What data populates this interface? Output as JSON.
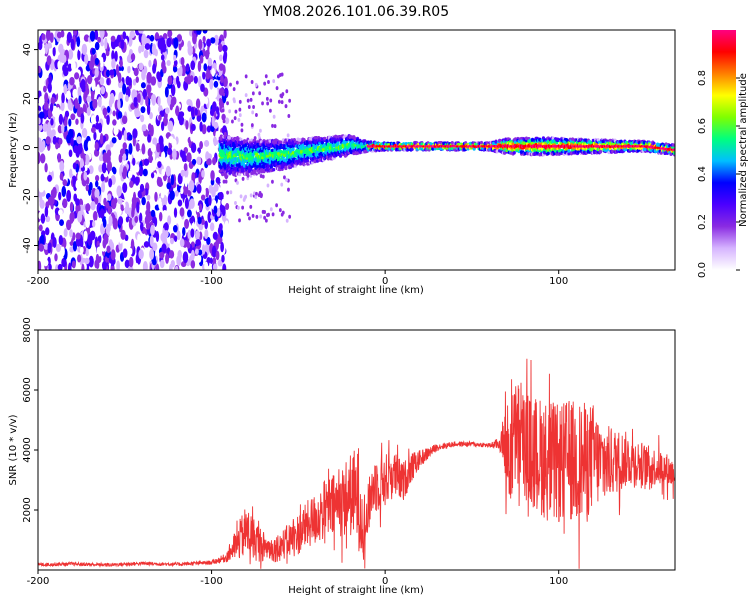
{
  "title": "YM08.2026.101.06.39.R05",
  "chart_data": [
    {
      "type": "heatmap",
      "name": "spectrogram",
      "xlabel": "Height of straight line (km)",
      "ylabel": "Frequency (Hz)",
      "xlim": [
        -200,
        167
      ],
      "ylim": [
        -50,
        48
      ],
      "x_ticks": [
        -200,
        -100,
        0,
        100
      ],
      "y_ticks": [
        -40,
        -20,
        0,
        20,
        40
      ],
      "x_tick_labels": [
        "-200",
        "-100",
        "0",
        "100"
      ],
      "y_tick_labels": [
        "-40",
        "-20",
        "0",
        "20",
        "40"
      ],
      "noise_region_x": [
        -200,
        -95
      ],
      "signal_start_x": -95,
      "ridge": {
        "x": [
          -95,
          -80,
          -60,
          -40,
          -20,
          -10,
          0,
          20,
          40,
          60,
          70,
          90,
          110,
          130,
          150,
          167
        ],
        "f": [
          -3,
          -4,
          -3,
          -1,
          1,
          0.5,
          0.5,
          0.5,
          0.5,
          0.5,
          0.5,
          0.5,
          0.5,
          0.5,
          0.5,
          -1
        ],
        "halfwidth": [
          8,
          7,
          6,
          5,
          4,
          2,
          1.5,
          1.5,
          1.5,
          1.5,
          3,
          3.5,
          3,
          2.5,
          2,
          2
        ]
      },
      "colorbar": {
        "label": "Normalized spectral amplitude",
        "range": [
          0,
          1
        ],
        "ticks": [
          0.0,
          0.2,
          0.4,
          0.6,
          0.8
        ],
        "tick_labels": [
          "0.0",
          "0.2",
          "0.4",
          "0.6",
          "0.8"
        ],
        "colormap": [
          "#ffffff",
          "#d6b4ff",
          "#8a2be2",
          "#4b00ff",
          "#0000ff",
          "#00bfff",
          "#00ff7f",
          "#7fff00",
          "#ffff00",
          "#ff7f00",
          "#ff0000",
          "#ff0080"
        ]
      }
    },
    {
      "type": "line",
      "name": "snr",
      "xlabel": "Height of straight line (km)",
      "ylabel": "SNR (10 * v/v)",
      "color": "#ee3333",
      "xlim": [
        -200,
        167
      ],
      "ylim": [
        0,
        8000
      ],
      "x_ticks": [
        -200,
        -100,
        0,
        100
      ],
      "y_ticks": [
        2000,
        4000,
        6000,
        8000
      ],
      "x_tick_labels": [
        "-200",
        "-100",
        "0",
        "100"
      ],
      "y_tick_labels": [
        "2000",
        "4000",
        "6000",
        "8000"
      ],
      "series": [
        {
          "name": "SNR",
          "x": [
            -200,
            -180,
            -160,
            -140,
            -120,
            -100,
            -92,
            -85,
            -80,
            -75,
            -70,
            -65,
            -60,
            -55,
            -50,
            -45,
            -40,
            -35,
            -30,
            -25,
            -20,
            -15,
            -12,
            -8,
            -5,
            0,
            5,
            10,
            15,
            20,
            25,
            30,
            40,
            50,
            60,
            65,
            68,
            70,
            72,
            75,
            80,
            85,
            90,
            95,
            100,
            105,
            110,
            115,
            120,
            125,
            130,
            140,
            150,
            160,
            167
          ],
          "y": [
            180,
            200,
            170,
            220,
            190,
            250,
            400,
            900,
            1300,
            1000,
            800,
            700,
            800,
            1000,
            1200,
            1500,
            1700,
            2000,
            2100,
            2300,
            2500,
            2400,
            1200,
            2600,
            2900,
            3000,
            3200,
            2900,
            3400,
            3700,
            3900,
            4100,
            4200,
            4200,
            4150,
            4200,
            4300,
            4000,
            3800,
            4500,
            4200,
            3900,
            3800,
            3600,
            3500,
            3700,
            3600,
            3600,
            3800,
            3500,
            3600,
            3700,
            3500,
            3400,
            3200
          ],
          "noise_amplitude": [
            60,
            60,
            60,
            60,
            60,
            70,
            150,
            600,
            900,
            700,
            500,
            450,
            500,
            600,
            700,
            800,
            900,
            1000,
            1100,
            1200,
            1400,
            1800,
            900,
            900,
            1000,
            900,
            800,
            700,
            500,
            300,
            200,
            120,
            90,
            80,
            80,
            200,
            600,
            1600,
            1800,
            1900,
            1800,
            1900,
            2000,
            2100,
            2000,
            2000,
            2100,
            2000,
            1800,
            1400,
            1200,
            900,
            700,
            600,
            500
          ]
        }
      ]
    }
  ]
}
